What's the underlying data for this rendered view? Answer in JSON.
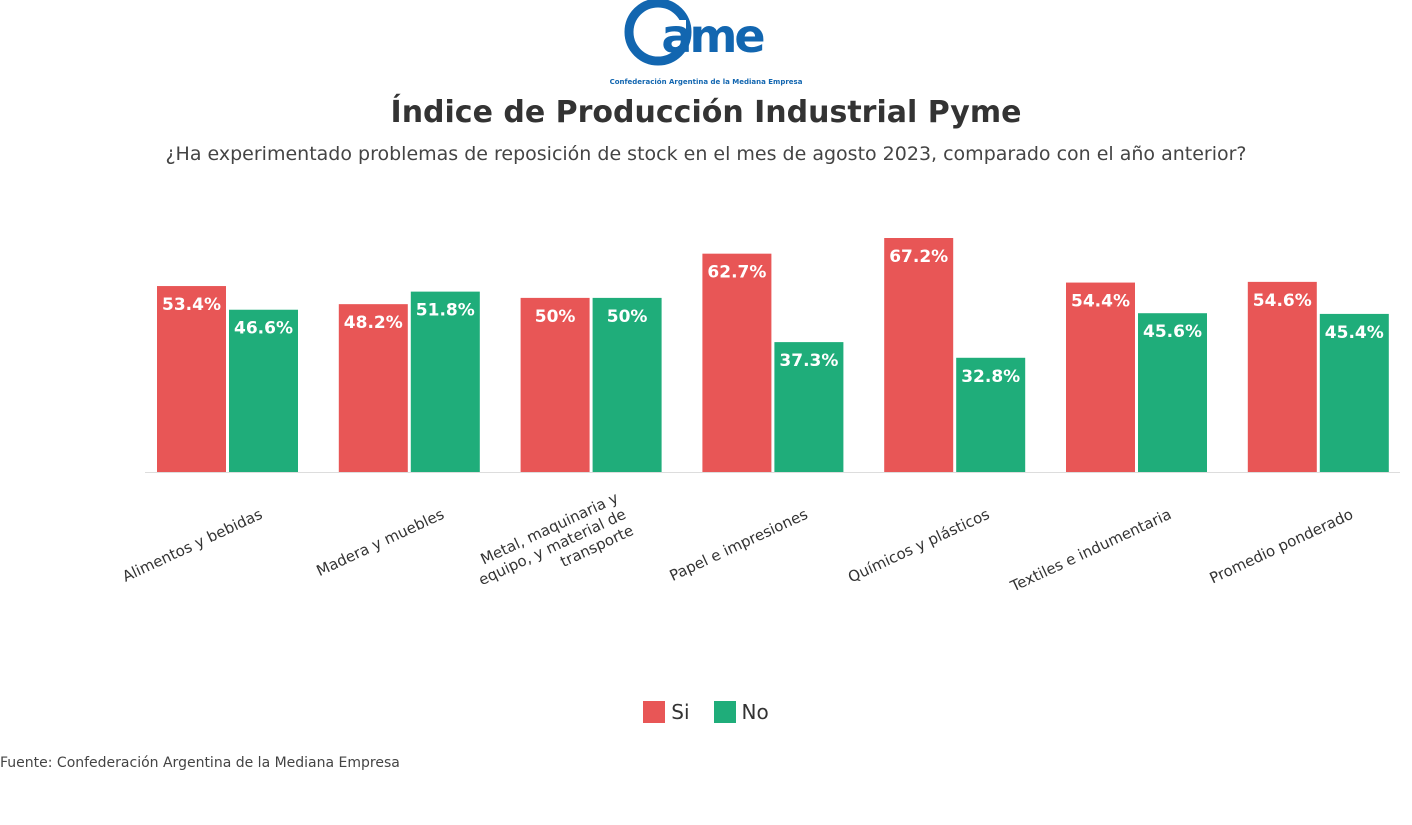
{
  "logo": {
    "text": "ame",
    "tagline": "Confederación Argentina de la Mediana Empresa",
    "color": "#1266b0"
  },
  "title": "Índice de Producción Industrial Pyme",
  "subtitle": "¿Ha experimentado problemas de reposición de stock en el mes de agosto 2023, comparado con el año anterior?",
  "source": "Fuente: Confederación Argentina de la Mediana Empresa",
  "chart_data": {
    "type": "bar",
    "categories": [
      [
        "Alimentos y bebidas"
      ],
      [
        "Madera y muebles"
      ],
      [
        "Metal, maquinaria y",
        "equipo, y material de",
        "transporte"
      ],
      [
        "Papel e impresiones"
      ],
      [
        "Químicos y plásticos"
      ],
      [
        "Textiles e indumentaria"
      ],
      [
        "Promedio ponderado"
      ]
    ],
    "series": [
      {
        "name": "Si",
        "color": "#e85656",
        "values": [
          53.4,
          48.2,
          50,
          62.7,
          67.2,
          54.4,
          54.6
        ],
        "labels": [
          "53.4%",
          "48.2%",
          "50%",
          "62.7%",
          "67.2%",
          "54.4%",
          "54.6%"
        ]
      },
      {
        "name": "No",
        "color": "#1fad7a",
        "values": [
          46.6,
          51.8,
          50,
          37.3,
          32.8,
          45.6,
          45.4
        ],
        "labels": [
          "46.6%",
          "51.8%",
          "50%",
          "37.3%",
          "32.8%",
          "45.6%",
          "45.4%"
        ]
      }
    ],
    "ylim": [
      0,
      67.2
    ],
    "grid": false,
    "legend": "bottom-center"
  }
}
